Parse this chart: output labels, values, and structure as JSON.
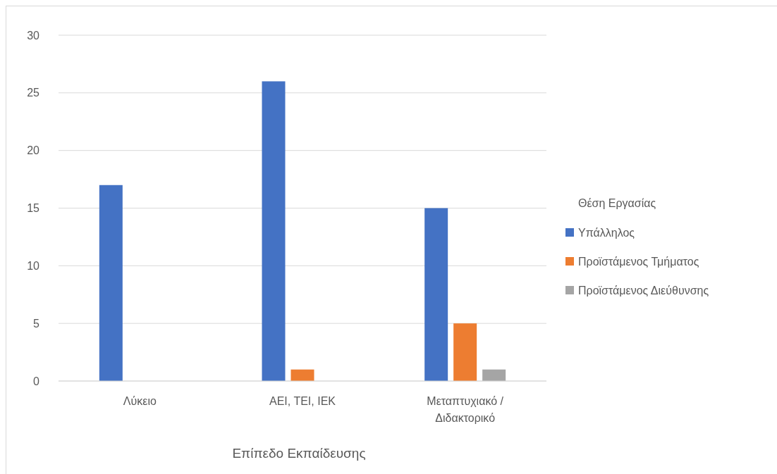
{
  "chart_data": {
    "type": "bar",
    "xlabel": "Επίπεδο Εκπαίδευσης",
    "legend_title": "Θέση Εργασίας",
    "categories": [
      "Λύκειο",
      "ΑΕΙ, ΤΕΙ, ΙΕΚ",
      "Μεταπτυχιακό / Διδακτορικό"
    ],
    "series": [
      {
        "name": "Υπάλληλος",
        "color": "#4472c4",
        "values": [
          17,
          26,
          15
        ]
      },
      {
        "name": "Προϊστάμενος Τμήματος",
        "color": "#ed7d31",
        "values": [
          0,
          1,
          5
        ]
      },
      {
        "name": "Προϊστάμενος Διεύθυνσης",
        "color": "#a5a5a5",
        "values": [
          0,
          0,
          1
        ]
      }
    ],
    "ylim": [
      0,
      30
    ],
    "yticks": [
      0,
      5,
      10,
      15,
      20,
      25,
      30
    ],
    "grid": "y",
    "legend": "right"
  }
}
